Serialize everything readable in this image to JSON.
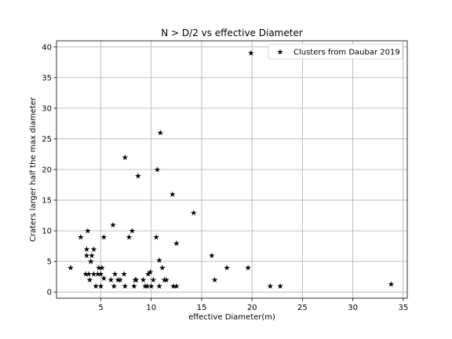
{
  "chart_data": {
    "type": "scatter",
    "title": "N > D/2 vs effective Diameter",
    "xlabel": "effective Diameter(m)",
    "ylabel": "Craters larger half the max diameter",
    "xlim": [
      0.6,
      35.4
    ],
    "ylim": [
      -1.0,
      41.0
    ],
    "xticks": [
      5,
      10,
      15,
      20,
      25,
      30,
      35
    ],
    "yticks": [
      0,
      5,
      10,
      15,
      20,
      25,
      30,
      35,
      40
    ],
    "grid": true,
    "legend_position": "top-right",
    "series": [
      {
        "name": "Clusters from Daubar 2019",
        "marker": "star",
        "color": "#000000",
        "points": [
          [
            2.0,
            4
          ],
          [
            3.0,
            9
          ],
          [
            3.5,
            3
          ],
          [
            3.6,
            6
          ],
          [
            3.6,
            7
          ],
          [
            3.7,
            10
          ],
          [
            3.8,
            3
          ],
          [
            3.9,
            2
          ],
          [
            4.0,
            5
          ],
          [
            4.0,
            5
          ],
          [
            4.1,
            6
          ],
          [
            4.3,
            7
          ],
          [
            4.3,
            3
          ],
          [
            4.5,
            1
          ],
          [
            4.7,
            3
          ],
          [
            4.8,
            4
          ],
          [
            5.0,
            3
          ],
          [
            5.0,
            1
          ],
          [
            5.1,
            4
          ],
          [
            5.3,
            2.3
          ],
          [
            5.3,
            9
          ],
          [
            6.0,
            2
          ],
          [
            6.2,
            11
          ],
          [
            6.3,
            1
          ],
          [
            6.4,
            3
          ],
          [
            6.7,
            2
          ],
          [
            6.9,
            2
          ],
          [
            7.3,
            3
          ],
          [
            7.4,
            1
          ],
          [
            7.4,
            22
          ],
          [
            7.8,
            9
          ],
          [
            8.1,
            10
          ],
          [
            8.3,
            1
          ],
          [
            8.4,
            2
          ],
          [
            8.5,
            2
          ],
          [
            8.7,
            19
          ],
          [
            9.2,
            2
          ],
          [
            9.4,
            1
          ],
          [
            9.6,
            1
          ],
          [
            9.7,
            3
          ],
          [
            9.9,
            3.3
          ],
          [
            10.0,
            1
          ],
          [
            10.2,
            2
          ],
          [
            10.5,
            9
          ],
          [
            10.6,
            20
          ],
          [
            10.8,
            5.2
          ],
          [
            10.8,
            1
          ],
          [
            10.9,
            26
          ],
          [
            11.1,
            4
          ],
          [
            11.3,
            2
          ],
          [
            11.5,
            2
          ],
          [
            12.1,
            16
          ],
          [
            12.2,
            1
          ],
          [
            12.5,
            1
          ],
          [
            12.5,
            8
          ],
          [
            14.2,
            13
          ],
          [
            16.0,
            6
          ],
          [
            16.3,
            2
          ],
          [
            17.5,
            4
          ],
          [
            19.6,
            4
          ],
          [
            19.9,
            39
          ],
          [
            21.8,
            1
          ],
          [
            22.8,
            1
          ],
          [
            33.8,
            1.3
          ]
        ]
      }
    ]
  }
}
